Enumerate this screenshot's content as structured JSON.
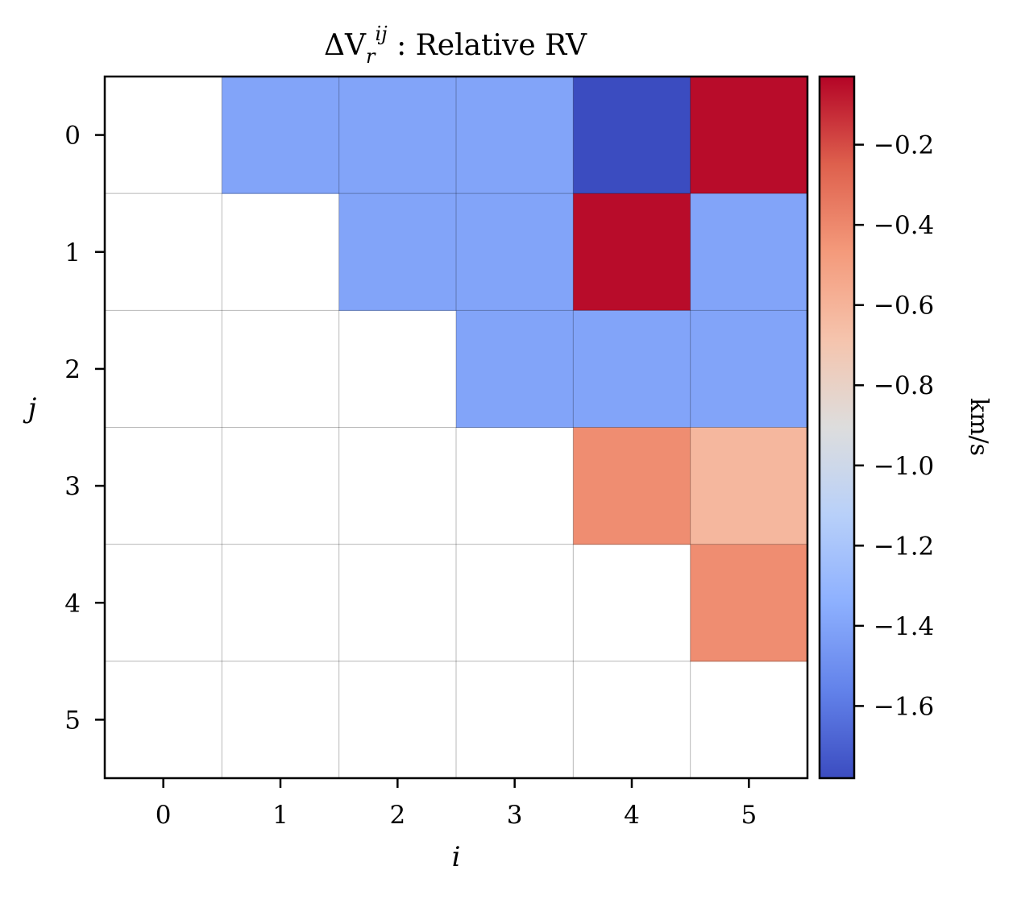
{
  "chart_data": {
    "type": "heatmap",
    "title_main": "ΔV",
    "title_sub": "r",
    "title_sup": "ij",
    "title_rest": " : Relative RV",
    "xlabel": "i",
    "ylabel": "j",
    "x_categories": [
      "0",
      "1",
      "2",
      "3",
      "4",
      "5"
    ],
    "y_categories": [
      "0",
      "1",
      "2",
      "3",
      "4",
      "5"
    ],
    "values": [
      [
        null,
        -1.4,
        -1.4,
        -1.4,
        -1.78,
        -0.05
      ],
      [
        null,
        null,
        -1.4,
        -1.4,
        -0.05,
        -1.4
      ],
      [
        null,
        null,
        null,
        -1.4,
        -1.4,
        -1.4
      ],
      [
        null,
        null,
        null,
        null,
        -0.42,
        -0.62
      ],
      [
        null,
        null,
        null,
        null,
        null,
        -0.42
      ],
      [
        null,
        null,
        null,
        null,
        null,
        null
      ]
    ],
    "colorbar": {
      "colormap": "coolwarm",
      "vmin": -1.78,
      "vmax": -0.03,
      "ticks": [
        -1.6,
        -1.4,
        -1.2,
        -1.0,
        -0.8,
        -0.6,
        -0.4,
        -0.2
      ],
      "tick_labels": [
        "−1.6",
        "−1.4",
        "−1.2",
        "−1.0",
        "−0.8",
        "−0.6",
        "−0.4",
        "−0.2"
      ],
      "label": "km/s"
    },
    "grid": true
  }
}
